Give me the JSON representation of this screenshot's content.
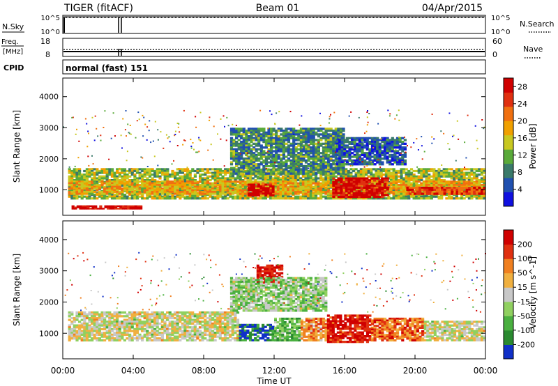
{
  "header": {
    "title": "TIGER (fitACF)",
    "beam": "Beam 01",
    "date": "04/Apr/2015"
  },
  "nsky_panel": {
    "left_label": "N.Sky",
    "right_label": "N.Search",
    "left_ticks": [
      "10^5",
      "10^0"
    ],
    "right_ticks": [
      "10^5",
      "10^0"
    ]
  },
  "freq_panel": {
    "left_label_line1": "Freq.",
    "left_label_line2": "[MHz]",
    "right_label": "Nave",
    "left_ticks": [
      "18",
      "8"
    ],
    "right_ticks": [
      "60",
      "0"
    ]
  },
  "cpid": {
    "label": "CPID",
    "value": "normal (fast) 151"
  },
  "x_axis": {
    "label": "Time UT",
    "ticks": [
      "00:00",
      "04:00",
      "08:00",
      "12:00",
      "16:00",
      "20:00",
      "00:00"
    ]
  },
  "chart_data": [
    {
      "type": "heatmap",
      "title": "Power",
      "xlabel": "Time UT",
      "ylabel": "Slant Range [km]",
      "xlim": [
        0,
        24
      ],
      "ylim": [
        180,
        4600
      ],
      "yticks": [
        "1000",
        "2000",
        "3000",
        "4000"
      ],
      "colorbar": {
        "label": "Power [dB]",
        "ticks": [
          "4",
          "8",
          "12",
          "16",
          "20",
          "24",
          "28"
        ],
        "range": [
          0,
          30
        ],
        "colors": [
          "#1010e0",
          "#2050b0",
          "#3a7a6a",
          "#5aaa3a",
          "#c8c820",
          "#f0a000",
          "#f07010",
          "#e03010",
          "#d00000"
        ]
      },
      "bands": [
        {
          "t0": 0.3,
          "t1": 24,
          "r0": 700,
          "r1": 1700,
          "level": 0.45
        },
        {
          "t0": 0.3,
          "t1": 24,
          "r0": 850,
          "r1": 1300,
          "level": 0.6
        },
        {
          "t0": 0.5,
          "t1": 4.5,
          "r0": 380,
          "r1": 500,
          "level": 0.95
        },
        {
          "t0": 10.5,
          "t1": 12.0,
          "r0": 800,
          "r1": 1200,
          "level": 1.0
        },
        {
          "t0": 15.3,
          "t1": 18.5,
          "r0": 750,
          "r1": 1400,
          "level": 0.95
        },
        {
          "t0": 19.5,
          "t1": 24,
          "r0": 850,
          "r1": 1100,
          "level": 0.85
        },
        {
          "t0": 9.5,
          "t1": 16.0,
          "r0": 1500,
          "r1": 3000,
          "level": 0.3
        },
        {
          "t0": 15.5,
          "t1": 19.5,
          "r0": 1800,
          "r1": 2700,
          "level": 0.2
        }
      ]
    },
    {
      "type": "heatmap",
      "title": "Velocity",
      "xlabel": "Time UT",
      "ylabel": "Slant Range [km]",
      "xlim": [
        0,
        24
      ],
      "ylim": [
        180,
        4600
      ],
      "yticks": [
        "1000",
        "2000",
        "3000",
        "4000"
      ],
      "colorbar": {
        "label": "Velocity [m s^-1]",
        "ticks": [
          "200",
          "100",
          "50",
          "15",
          "-15",
          "-50",
          "-100",
          "-200"
        ],
        "range": [
          -250,
          250
        ],
        "colors": [
          "#1030c8",
          "#2a8a30",
          "#4ab040",
          "#90d060",
          "#c8c8c8",
          "#f0b040",
          "#f08020",
          "#e03010",
          "#d00000"
        ]
      },
      "bands": [
        {
          "t0": 0.3,
          "t1": 10.0,
          "r0": 750,
          "r1": 1700,
          "level": 0.5
        },
        {
          "t0": 10.0,
          "t1": 12.0,
          "r0": 750,
          "r1": 1300,
          "level": 0.12
        },
        {
          "t0": 12.0,
          "t1": 13.5,
          "r0": 750,
          "r1": 1500,
          "level": 0.3
        },
        {
          "t0": 13.5,
          "t1": 15.0,
          "r0": 750,
          "r1": 1500,
          "level": 0.7
        },
        {
          "t0": 15.0,
          "t1": 17.5,
          "r0": 700,
          "r1": 1600,
          "level": 0.92
        },
        {
          "t0": 17.5,
          "t1": 20.5,
          "r0": 750,
          "r1": 1500,
          "level": 0.75
        },
        {
          "t0": 20.5,
          "t1": 24,
          "r0": 750,
          "r1": 1400,
          "level": 0.5
        },
        {
          "t0": 11.0,
          "t1": 12.5,
          "r0": 2600,
          "r1": 3200,
          "level": 0.95
        },
        {
          "t0": 9.5,
          "t1": 15.0,
          "r0": 1700,
          "r1": 2800,
          "level": 0.4
        }
      ]
    }
  ]
}
